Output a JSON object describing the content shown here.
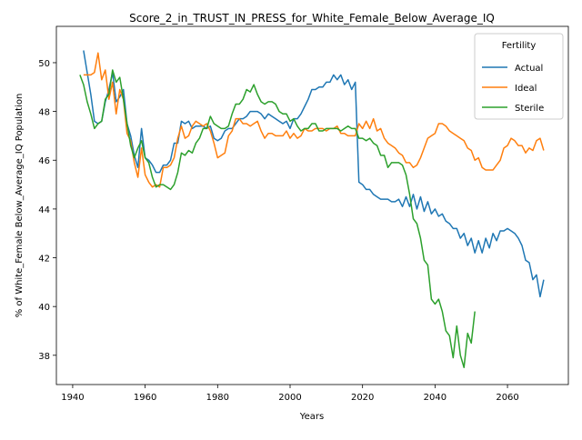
{
  "chart_data": {
    "type": "line",
    "title": "Score_2_in_TRUST_IN_PRESS_for_White_Female_Below_Average_IQ",
    "x_label": "Years",
    "y_label": "% of White_Female Below_Average_IQ Population",
    "legend_title": "Fertility",
    "legend_loc": "upper right",
    "x": [
      1942,
      1943,
      1944,
      1945,
      1946,
      1947,
      1948,
      1949,
      1950,
      1951,
      1952,
      1953,
      1954,
      1955,
      1956,
      1957,
      1958,
      1959,
      1960,
      1961,
      1962,
      1963,
      1964,
      1965,
      1966,
      1967,
      1968,
      1969,
      1970,
      1971,
      1972,
      1973,
      1974,
      1975,
      1976,
      1977,
      1978,
      1979,
      1980,
      1981,
      1982,
      1983,
      1984,
      1985,
      1986,
      1987,
      1988,
      1989,
      1990,
      1991,
      1992,
      1993,
      1994,
      1995,
      1996,
      1997,
      1998,
      1999,
      2000,
      2001,
      2002,
      2003,
      2004,
      2005,
      2006,
      2007,
      2008,
      2009,
      2010,
      2011,
      2012,
      2013,
      2014,
      2015,
      2016,
      2017,
      2018,
      2019,
      2020,
      2021,
      2022,
      2023,
      2024,
      2025,
      2026,
      2027,
      2028,
      2029,
      2030,
      2031,
      2032,
      2033,
      2034,
      2035,
      2036,
      2037,
      2038,
      2039,
      2040,
      2041,
      2042,
      2043,
      2044,
      2045,
      2046,
      2047,
      2048,
      2049,
      2050,
      2051,
      2052,
      2053,
      2054,
      2055,
      2056,
      2057,
      2058,
      2059,
      2060,
      2061,
      2062,
      2063,
      2064,
      2065,
      2066,
      2067,
      2068,
      2069,
      2070
    ],
    "series": [
      {
        "name": "Actual",
        "color": "#1f77b4",
        "values": [
          null,
          50.5,
          49.6,
          48.7,
          47.6,
          47.5,
          47.6,
          48.4,
          48.9,
          49.6,
          48.4,
          48.6,
          48.9,
          47.5,
          47.0,
          46.2,
          45.7,
          47.3,
          46.1,
          46.0,
          45.8,
          45.5,
          45.5,
          45.8,
          45.8,
          46.0,
          46.7,
          46.7,
          47.6,
          47.5,
          47.6,
          47.3,
          47.4,
          47.4,
          47.4,
          47.3,
          47.4,
          46.9,
          46.8,
          46.9,
          47.2,
          47.3,
          47.3,
          47.5,
          47.7,
          47.7,
          47.8,
          48.0,
          48.0,
          48.0,
          47.9,
          47.7,
          47.9,
          47.8,
          47.7,
          47.6,
          47.5,
          47.6,
          47.3,
          47.7,
          47.7,
          47.9,
          48.2,
          48.5,
          48.9,
          48.9,
          49.0,
          49.0,
          49.2,
          49.2,
          49.5,
          49.3,
          49.5,
          49.1,
          49.3,
          48.9,
          49.2,
          45.1,
          45.0,
          44.8,
          44.8,
          44.6,
          44.5,
          44.4,
          44.4,
          44.4,
          44.3,
          44.3,
          44.4,
          44.1,
          44.5,
          44.1,
          44.6,
          44.0,
          44.5,
          43.9,
          44.3,
          43.8,
          44.0,
          43.7,
          43.8,
          43.5,
          43.4,
          43.2,
          43.2,
          42.8,
          43.0,
          42.5,
          42.8,
          42.2,
          42.7,
          42.2,
          42.8,
          42.4,
          43.0,
          42.7,
          43.1,
          43.1,
          43.2,
          43.1,
          43.0,
          42.8,
          42.5,
          41.9,
          41.8,
          41.1,
          41.3,
          40.4,
          41.1
        ]
      },
      {
        "name": "Ideal",
        "color": "#ff7f0e",
        "values": [
          null,
          49.5,
          49.5,
          49.5,
          49.6,
          50.4,
          49.3,
          49.7,
          48.5,
          49.2,
          47.9,
          48.9,
          48.5,
          47.1,
          46.8,
          45.9,
          45.3,
          46.5,
          45.4,
          45.1,
          44.9,
          45.0,
          44.9,
          45.7,
          45.7,
          45.8,
          46.1,
          46.9,
          47.4,
          46.9,
          47.0,
          47.4,
          47.6,
          47.5,
          47.4,
          47.5,
          47.2,
          46.7,
          46.1,
          46.2,
          46.3,
          47.0,
          47.2,
          47.7,
          47.7,
          47.5,
          47.5,
          47.4,
          47.5,
          47.6,
          47.2,
          46.9,
          47.1,
          47.1,
          47.0,
          47.0,
          47.0,
          47.2,
          46.9,
          47.1,
          46.9,
          47.0,
          47.3,
          47.2,
          47.2,
          47.3,
          47.3,
          47.3,
          47.2,
          47.3,
          47.3,
          47.4,
          47.1,
          47.1,
          47.0,
          47.0,
          47.0,
          47.5,
          47.3,
          47.6,
          47.3,
          47.7,
          47.2,
          47.3,
          46.9,
          46.7,
          46.6,
          46.5,
          46.3,
          46.2,
          45.9,
          45.9,
          45.7,
          45.8,
          46.1,
          46.5,
          46.9,
          47.0,
          47.1,
          47.5,
          47.5,
          47.4,
          47.2,
          47.1,
          47.0,
          46.9,
          46.8,
          46.5,
          46.4,
          46.0,
          46.1,
          45.7,
          45.6,
          45.6,
          45.6,
          45.8,
          46.0,
          46.5,
          46.6,
          46.9,
          46.8,
          46.6,
          46.6,
          46.3,
          46.5,
          46.4,
          46.8,
          46.9,
          46.4
        ]
      },
      {
        "name": "Sterile",
        "color": "#2ca02c",
        "values": [
          49.5,
          49.1,
          48.4,
          47.9,
          47.3,
          47.5,
          47.6,
          48.5,
          48.7,
          49.7,
          49.2,
          49.4,
          48.5,
          47.5,
          46.6,
          46.1,
          46.5,
          46.8,
          46.1,
          45.9,
          45.3,
          44.9,
          45.0,
          45.0,
          44.9,
          44.8,
          45.0,
          45.5,
          46.3,
          46.2,
          46.4,
          46.3,
          46.7,
          46.9,
          47.3,
          47.3,
          47.8,
          47.5,
          47.4,
          47.3,
          47.3,
          47.4,
          47.9,
          48.3,
          48.3,
          48.5,
          48.9,
          48.8,
          49.1,
          48.7,
          48.4,
          48.3,
          48.4,
          48.4,
          48.3,
          48.0,
          47.9,
          47.9,
          47.6,
          47.7,
          47.4,
          47.2,
          47.3,
          47.3,
          47.5,
          47.5,
          47.2,
          47.2,
          47.3,
          47.3,
          47.3,
          47.3,
          47.2,
          47.3,
          47.4,
          47.3,
          47.3,
          46.9,
          46.9,
          46.8,
          46.9,
          46.7,
          46.6,
          46.2,
          46.2,
          45.7,
          45.9,
          45.9,
          45.9,
          45.8,
          45.4,
          44.6,
          43.6,
          43.4,
          42.8,
          41.9,
          41.7,
          40.3,
          40.1,
          40.3,
          39.8,
          39.0,
          38.8,
          37.9,
          39.2,
          38.0,
          37.5,
          38.9,
          38.5,
          39.8,
          null,
          null,
          null,
          null,
          null,
          null,
          null,
          null,
          null,
          null,
          null,
          null,
          null,
          null,
          null,
          null,
          null,
          null,
          null
        ]
      }
    ],
    "xlim": [
      1935.5,
      2076.8
    ],
    "xticks": [
      1940,
      1960,
      1980,
      2000,
      2020,
      2040,
      2060
    ],
    "ylim": [
      36.8,
      51.49
    ],
    "yticks": [
      38,
      40,
      42,
      44,
      46,
      48,
      50
    ]
  }
}
